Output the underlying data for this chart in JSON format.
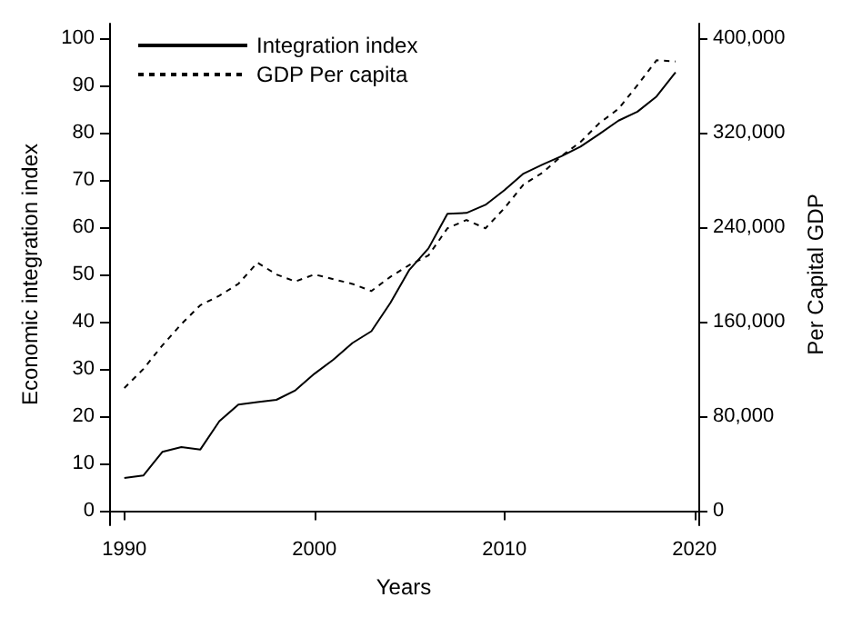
{
  "chart_data": {
    "type": "line",
    "xlabel": "Years",
    "ylabel": "Economic integration index",
    "y2label": "Per Capital GDP",
    "x": [
      1990,
      1991,
      1992,
      1993,
      1994,
      1995,
      1996,
      1997,
      1998,
      1999,
      2000,
      2001,
      2002,
      2003,
      2004,
      2005,
      2006,
      2007,
      2008,
      2009,
      2010,
      2011,
      2012,
      2013,
      2014,
      2015,
      2016,
      2017,
      2018,
      2019
    ],
    "series": [
      {
        "name": "Integration index",
        "color": "#000000",
        "line_style": "solid",
        "values": [
          7,
          7.5,
          12.5,
          13.5,
          13,
          19,
          22.5,
          23,
          23.5,
          25.5,
          29,
          32,
          35.5,
          38,
          44,
          51,
          55.5,
          62.8,
          63,
          64.7,
          67.8,
          71.3,
          73.2,
          75,
          77,
          79.7,
          82.5,
          84.4,
          87.6,
          92.7
        ]
      },
      {
        "name": "GDP Per capita",
        "color": "#000000",
        "line_style": "dashed",
        "axis": "y2",
        "values": [
          104000,
          120000,
          140000,
          158000,
          174000,
          182000,
          192000,
          210000,
          200000,
          194000,
          200000,
          196000,
          192000,
          186000,
          198000,
          208000,
          216000,
          239000,
          246000,
          239000,
          256000,
          276000,
          286000,
          300000,
          312000,
          328000,
          340000,
          360000,
          381000,
          380000
        ]
      }
    ],
    "xlim": [
      1989.2,
      2020.2
    ],
    "xticks": [
      1990,
      2000,
      2010,
      2020
    ],
    "ylim": [
      -3,
      103
    ],
    "yticks": [
      0,
      10,
      20,
      30,
      40,
      50,
      60,
      70,
      80,
      90,
      100
    ],
    "y2lim": [
      -12000,
      412000
    ],
    "y2ticks": [
      {
        "value": 0,
        "label": "0"
      },
      {
        "value": 80000,
        "label": "80,000"
      },
      {
        "value": 160000,
        "label": "160,000"
      },
      {
        "value": 240000,
        "label": "240,000"
      },
      {
        "value": 320000,
        "label": "320,000"
      },
      {
        "value": 400000,
        "label": "400,000"
      }
    ],
    "grid": false,
    "legend": "top left",
    "marker": "none"
  }
}
